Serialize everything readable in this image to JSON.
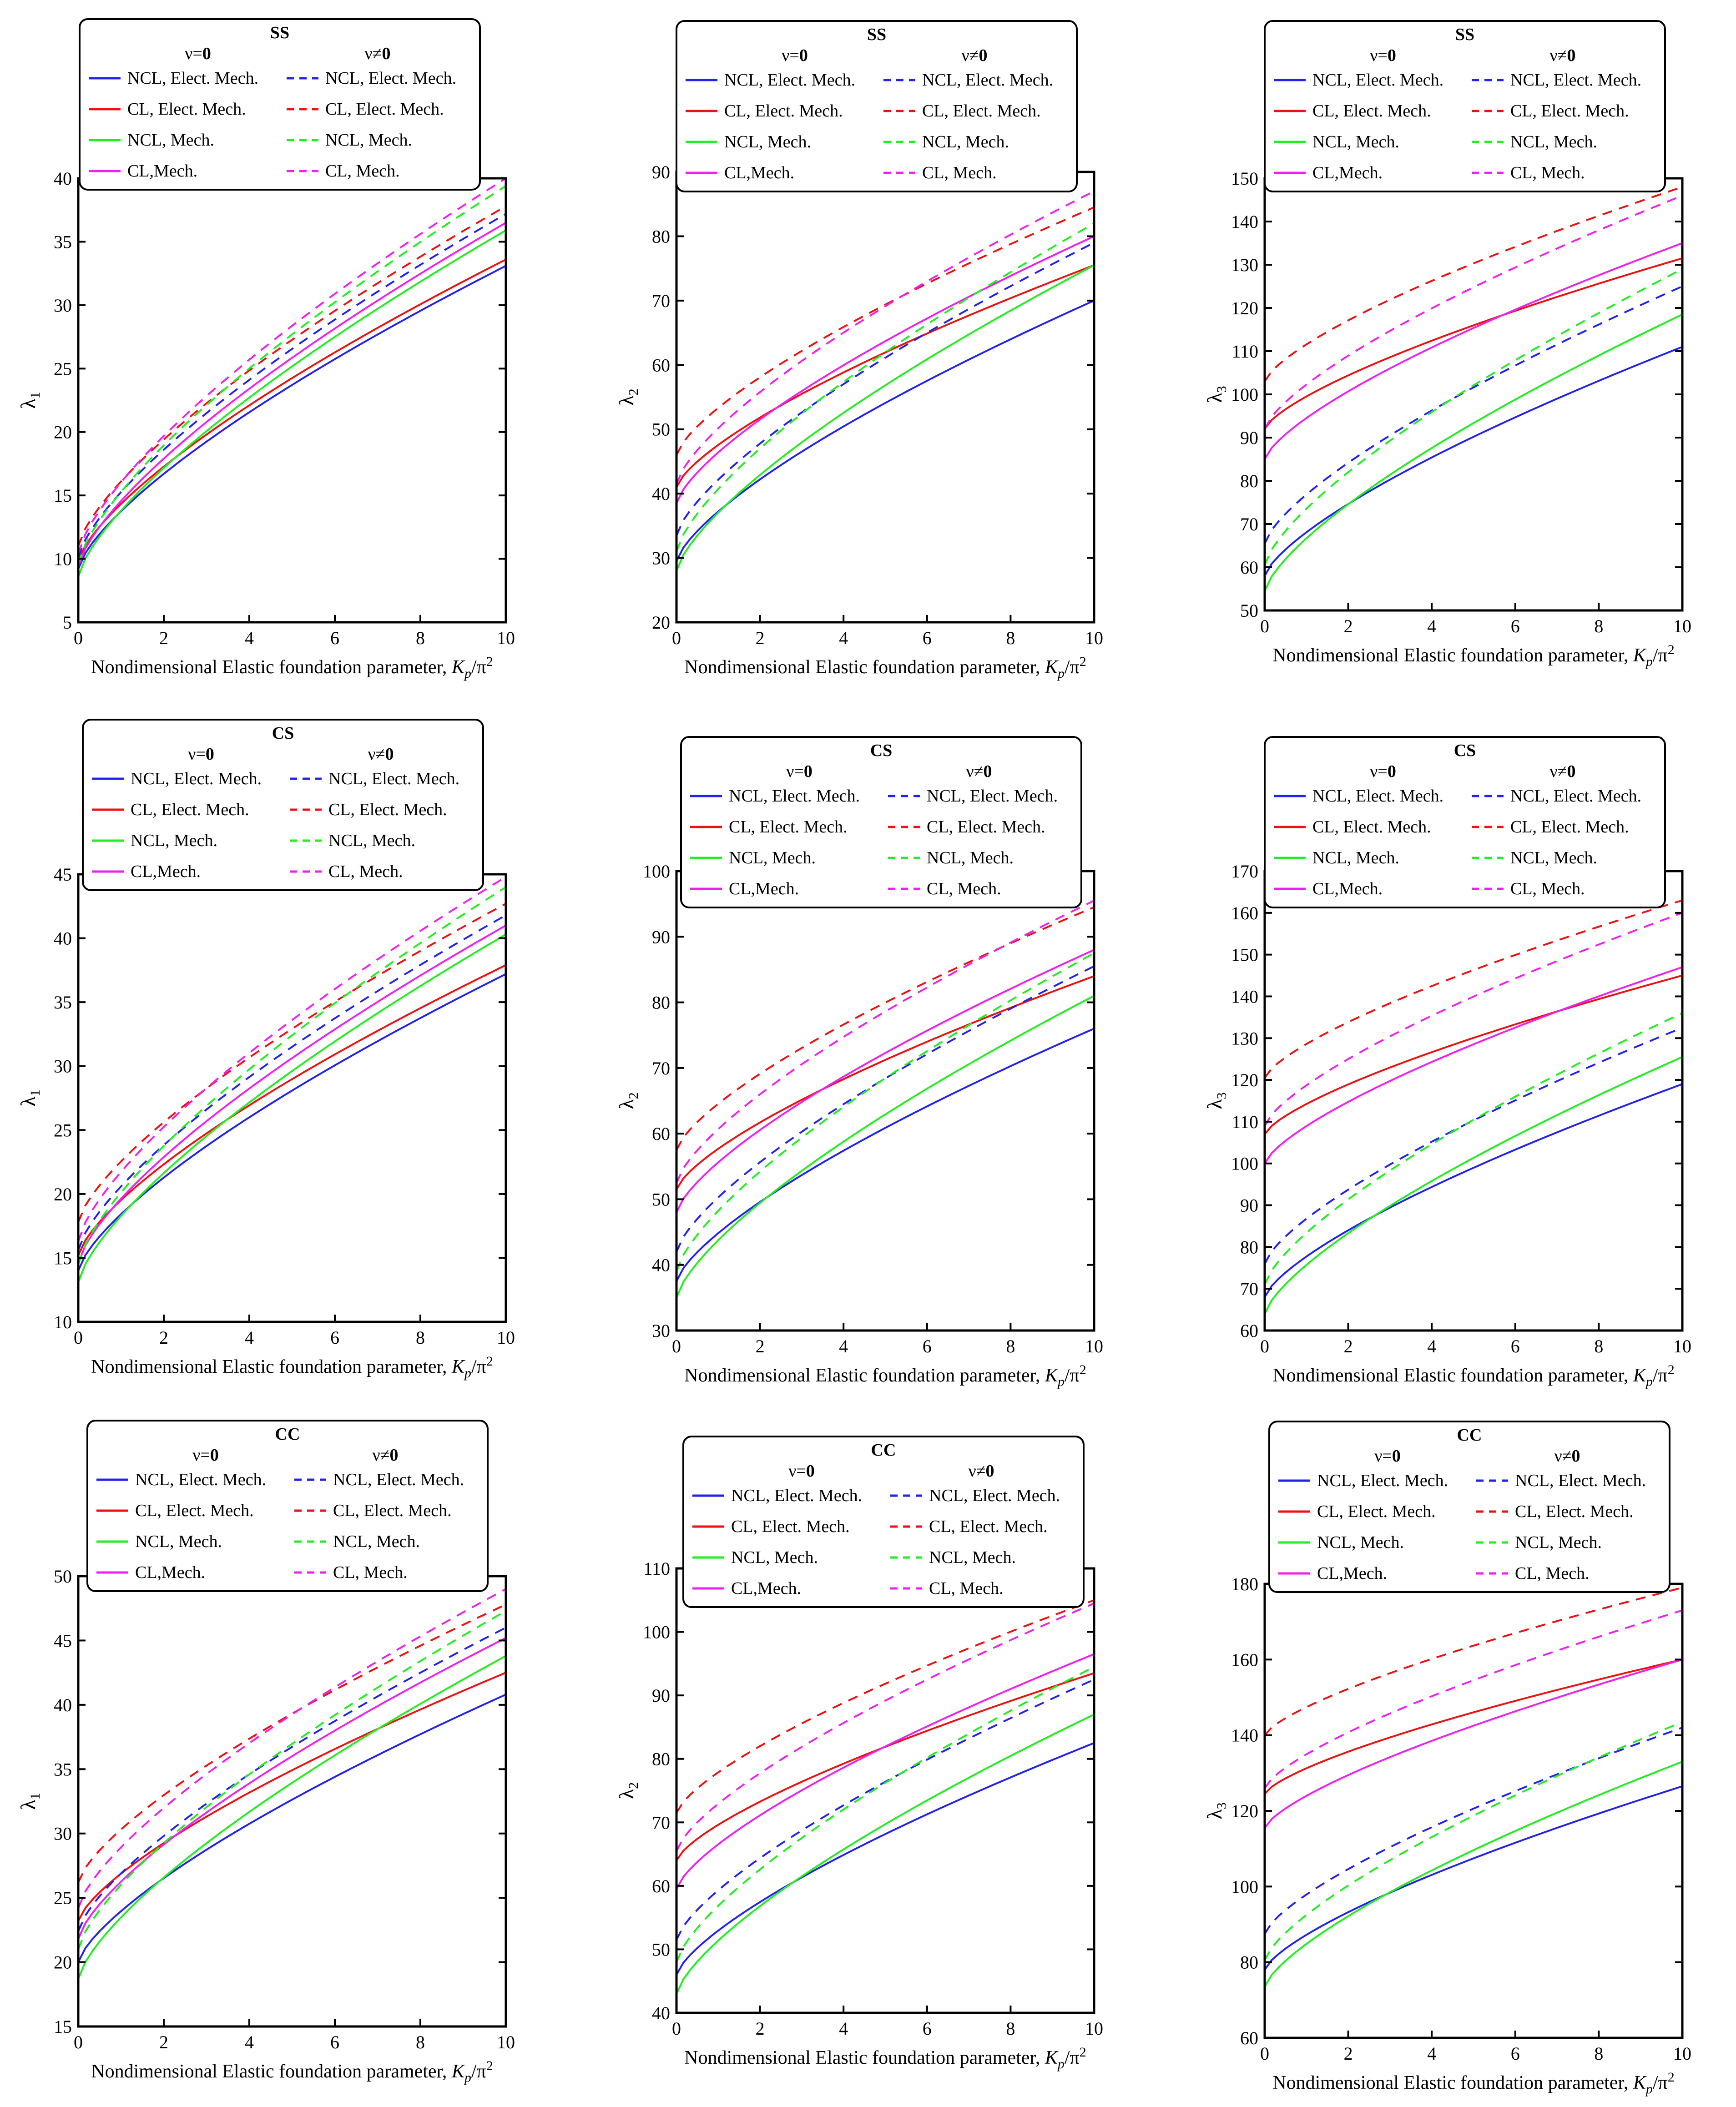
{
  "figure": {
    "colors": {
      "blue": "#2222ee",
      "red": "#ee1111",
      "green": "#22ee22",
      "magenta": "#ee22ee"
    },
    "xlabel_text": "Nondimensional Elastic foundation parameter, ",
    "xlabel_var": "K",
    "xlabel_sub": "p",
    "xlabel_tail": "/π",
    "xlabel_sup": "2",
    "legend": {
      "col1_head": "ν=",
      "col1_head_bold": "0",
      "col2_head": "ν≠",
      "col2_head_bold": "0",
      "col1_labels": [
        "NCL, Elect. Mech.",
        "CL, Elect. Mech.",
        "NCL, Mech.",
        "CL,Mech."
      ],
      "col2_labels": [
        "NCL, Elect. Mech.",
        "CL, Elect. Mech.",
        "NCL, Mech.",
        "CL,  Mech."
      ]
    }
  },
  "chart_data": [
    {
      "type": "line",
      "title": "SS",
      "ylabel": "λ",
      "ysub": "1",
      "xlim": [
        0,
        10
      ],
      "ylim": [
        5,
        40
      ],
      "ytick_step": 5,
      "series": [
        {
          "name": "NCL, Elect. Mech., ν=0",
          "color": "blue",
          "dash": false,
          "start": 9.2,
          "end": 33.1
        },
        {
          "name": "CL, Elect. Mech., ν=0",
          "color": "red",
          "dash": false,
          "start": 9.8,
          "end": 33.6
        },
        {
          "name": "NCL, Mech., ν=0",
          "color": "green",
          "dash": false,
          "start": 8.6,
          "end": 35.9
        },
        {
          "name": "CL,Mech., ν=0",
          "color": "magenta",
          "dash": false,
          "start": 9.4,
          "end": 36.5
        },
        {
          "name": "NCL, Elect. Mech., ν≠0",
          "color": "blue",
          "dash": true,
          "start": 10.1,
          "end": 37.2
        },
        {
          "name": "CL, Elect. Mech., ν≠0",
          "color": "red",
          "dash": true,
          "start": 11.0,
          "end": 37.8
        },
        {
          "name": "NCL, Mech., ν≠0",
          "color": "green",
          "dash": true,
          "start": 9.6,
          "end": 39.4
        },
        {
          "name": "CL,  Mech., ν≠0",
          "color": "magenta",
          "dash": true,
          "start": 10.4,
          "end": 40.0
        }
      ]
    },
    {
      "type": "line",
      "title": "SS",
      "ylabel": "λ",
      "ysub": "2",
      "xlim": [
        0,
        10
      ],
      "ylim": [
        20,
        90
      ],
      "ytick_step": 10,
      "series": [
        {
          "name": "NCL, Elect. Mech., ν=0",
          "color": "blue",
          "dash": false,
          "start": 29.5,
          "end": 70.0
        },
        {
          "name": "CL, Elect. Mech., ν=0",
          "color": "red",
          "dash": false,
          "start": 41.0,
          "end": 75.5
        },
        {
          "name": "NCL, Mech., ν=0",
          "color": "green",
          "dash": false,
          "start": 28.0,
          "end": 75.5
        },
        {
          "name": "CL,Mech., ν=0",
          "color": "magenta",
          "dash": false,
          "start": 38.5,
          "end": 80.0
        },
        {
          "name": "NCL, Elect. Mech., ν≠0",
          "color": "blue",
          "dash": true,
          "start": 33.5,
          "end": 79.0
        },
        {
          "name": "CL, Elect. Mech., ν≠0",
          "color": "red",
          "dash": true,
          "start": 46.0,
          "end": 84.5
        },
        {
          "name": "NCL, Mech., ν≠0",
          "color": "green",
          "dash": true,
          "start": 31.0,
          "end": 82.0
        },
        {
          "name": "CL,  Mech., ν≠0",
          "color": "magenta",
          "dash": true,
          "start": 41.5,
          "end": 87.0
        }
      ]
    },
    {
      "type": "line",
      "title": "SS",
      "ylabel": "λ",
      "ysub": "3",
      "xlim": [
        0,
        10
      ],
      "ylim": [
        50,
        150
      ],
      "ytick_step": 10,
      "series": [
        {
          "name": "NCL, Elect. Mech., ν=0",
          "color": "blue",
          "dash": false,
          "start": 58.0,
          "end": 111.0
        },
        {
          "name": "CL, Elect. Mech., ν=0",
          "color": "red",
          "dash": false,
          "start": 92.0,
          "end": 131.5
        },
        {
          "name": "NCL, Mech., ν=0",
          "color": "green",
          "dash": false,
          "start": 54.5,
          "end": 118.5
        },
        {
          "name": "CL,Mech., ν=0",
          "color": "magenta",
          "dash": false,
          "start": 85.0,
          "end": 135.0
        },
        {
          "name": "NCL, Elect. Mech., ν≠0",
          "color": "blue",
          "dash": true,
          "start": 65.5,
          "end": 125.0
        },
        {
          "name": "CL, Elect. Mech., ν≠0",
          "color": "red",
          "dash": true,
          "start": 103.0,
          "end": 148.0
        },
        {
          "name": "NCL, Mech., ν≠0",
          "color": "green",
          "dash": true,
          "start": 60.5,
          "end": 129.0
        },
        {
          "name": "CL,  Mech., ν≠0",
          "color": "magenta",
          "dash": true,
          "start": 92.0,
          "end": 146.0
        }
      ]
    },
    {
      "type": "line",
      "title": "CS",
      "ylabel": "λ",
      "ysub": "1",
      "xlim": [
        0,
        10
      ],
      "ylim": [
        10,
        45
      ],
      "ytick_step": 5,
      "series": [
        {
          "name": "NCL, Elect. Mech., ν=0",
          "color": "blue",
          "dash": false,
          "start": 14.0,
          "end": 37.2
        },
        {
          "name": "CL, Elect. Mech., ν=0",
          "color": "red",
          "dash": false,
          "start": 15.2,
          "end": 37.9
        },
        {
          "name": "NCL, Mech., ν=0",
          "color": "green",
          "dash": false,
          "start": 13.1,
          "end": 40.3
        },
        {
          "name": "CL,Mech., ν=0",
          "color": "magenta",
          "dash": false,
          "start": 14.6,
          "end": 41.0
        },
        {
          "name": "NCL, Elect. Mech., ν≠0",
          "color": "blue",
          "dash": true,
          "start": 15.6,
          "end": 41.8
        },
        {
          "name": "CL, Elect. Mech., ν≠0",
          "color": "red",
          "dash": true,
          "start": 17.8,
          "end": 42.7
        },
        {
          "name": "NCL, Mech., ν≠0",
          "color": "green",
          "dash": true,
          "start": 14.5,
          "end": 44.0
        },
        {
          "name": "CL,  Mech., ν≠0",
          "color": "magenta",
          "dash": true,
          "start": 16.3,
          "end": 44.8
        }
      ]
    },
    {
      "type": "line",
      "title": "CS",
      "ylabel": "λ",
      "ysub": "2",
      "xlim": [
        0,
        10
      ],
      "ylim": [
        30,
        100
      ],
      "ytick_step": 10,
      "series": [
        {
          "name": "NCL, Elect. Mech., ν=0",
          "color": "blue",
          "dash": false,
          "start": 37.5,
          "end": 76.0
        },
        {
          "name": "CL, Elect. Mech., ν=0",
          "color": "red",
          "dash": false,
          "start": 51.5,
          "end": 84.0
        },
        {
          "name": "NCL, Mech., ν=0",
          "color": "green",
          "dash": false,
          "start": 35.0,
          "end": 81.0
        },
        {
          "name": "CL,Mech., ν=0",
          "color": "magenta",
          "dash": false,
          "start": 48.0,
          "end": 88.0
        },
        {
          "name": "NCL, Elect. Mech., ν≠0",
          "color": "blue",
          "dash": true,
          "start": 42.0,
          "end": 85.5
        },
        {
          "name": "CL, Elect. Mech., ν≠0",
          "color": "red",
          "dash": true,
          "start": 57.5,
          "end": 94.5
        },
        {
          "name": "NCL, Mech., ν≠0",
          "color": "green",
          "dash": true,
          "start": 39.0,
          "end": 87.5
        },
        {
          "name": "CL,  Mech., ν≠0",
          "color": "magenta",
          "dash": true,
          "start": 52.5,
          "end": 95.5
        }
      ]
    },
    {
      "type": "line",
      "title": "CS",
      "ylabel": "λ",
      "ysub": "3",
      "xlim": [
        0,
        10
      ],
      "ylim": [
        60,
        170
      ],
      "ytick_step": 10,
      "series": [
        {
          "name": "NCL, Elect. Mech., ν=0",
          "color": "blue",
          "dash": false,
          "start": 68.0,
          "end": 119.0
        },
        {
          "name": "CL, Elect. Mech., ν=0",
          "color": "red",
          "dash": false,
          "start": 107.0,
          "end": 145.0
        },
        {
          "name": "NCL, Mech., ν=0",
          "color": "green",
          "dash": false,
          "start": 64.0,
          "end": 125.5
        },
        {
          "name": "CL,Mech., ν=0",
          "color": "magenta",
          "dash": false,
          "start": 100.0,
          "end": 147.0
        },
        {
          "name": "NCL, Elect. Mech., ν≠0",
          "color": "blue",
          "dash": true,
          "start": 76.0,
          "end": 132.5
        },
        {
          "name": "CL, Elect. Mech., ν≠0",
          "color": "red",
          "dash": true,
          "start": 120.5,
          "end": 163.0
        },
        {
          "name": "NCL, Mech., ν≠0",
          "color": "green",
          "dash": true,
          "start": 71.0,
          "end": 136.0
        },
        {
          "name": "CL,  Mech., ν≠0",
          "color": "magenta",
          "dash": true,
          "start": 109.0,
          "end": 160.0
        }
      ]
    },
    {
      "type": "line",
      "title": "CC",
      "ylabel": "λ",
      "ysub": "1",
      "xlim": [
        0,
        10
      ],
      "ylim": [
        15,
        50
      ],
      "ytick_step": 5,
      "series": [
        {
          "name": "NCL, Elect. Mech., ν=0",
          "color": "blue",
          "dash": false,
          "start": 20.0,
          "end": 40.8
        },
        {
          "name": "CL, Elect. Mech., ν=0",
          "color": "red",
          "dash": false,
          "start": 23.2,
          "end": 42.5
        },
        {
          "name": "NCL, Mech., ν=0",
          "color": "green",
          "dash": false,
          "start": 18.7,
          "end": 43.8
        },
        {
          "name": "CL,Mech., ν=0",
          "color": "magenta",
          "dash": false,
          "start": 21.8,
          "end": 45.2
        },
        {
          "name": "NCL, Elect. Mech., ν≠0",
          "color": "blue",
          "dash": true,
          "start": 22.4,
          "end": 46.0
        },
        {
          "name": "CL, Elect. Mech., ν≠0",
          "color": "red",
          "dash": true,
          "start": 26.2,
          "end": 47.8
        },
        {
          "name": "NCL, Mech., ν≠0",
          "color": "green",
          "dash": true,
          "start": 21.0,
          "end": 47.3
        },
        {
          "name": "CL,  Mech., ν≠0",
          "color": "magenta",
          "dash": true,
          "start": 24.2,
          "end": 49.0
        }
      ]
    },
    {
      "type": "line",
      "title": "CC",
      "ylabel": "λ",
      "ysub": "2",
      "xlim": [
        0,
        10
      ],
      "ylim": [
        40,
        110
      ],
      "ytick_step": 10,
      "series": [
        {
          "name": "NCL, Elect. Mech., ν=0",
          "color": "blue",
          "dash": false,
          "start": 46.0,
          "end": 82.5
        },
        {
          "name": "CL, Elect. Mech., ν=0",
          "color": "red",
          "dash": false,
          "start": 64.0,
          "end": 93.5
        },
        {
          "name": "NCL, Mech., ν=0",
          "color": "green",
          "dash": false,
          "start": 43.0,
          "end": 87.0
        },
        {
          "name": "CL,Mech., ν=0",
          "color": "magenta",
          "dash": false,
          "start": 59.5,
          "end": 96.5
        },
        {
          "name": "NCL, Elect. Mech., ν≠0",
          "color": "blue",
          "dash": true,
          "start": 51.5,
          "end": 92.5
        },
        {
          "name": "CL, Elect. Mech., ν≠0",
          "color": "red",
          "dash": true,
          "start": 71.5,
          "end": 105.0
        },
        {
          "name": "NCL, Mech., ν≠0",
          "color": "green",
          "dash": true,
          "start": 48.0,
          "end": 94.5
        },
        {
          "name": "CL,  Mech., ν≠0",
          "color": "magenta",
          "dash": true,
          "start": 65.5,
          "end": 104.5
        }
      ]
    },
    {
      "type": "line",
      "title": "CC",
      "ylabel": "λ",
      "ysub": "3",
      "xlim": [
        0,
        10
      ],
      "ylim": [
        60,
        180
      ],
      "ytick_step": 20,
      "series": [
        {
          "name": "NCL, Elect. Mech., ν=0",
          "color": "blue",
          "dash": false,
          "start": 78.0,
          "end": 126.5
        },
        {
          "name": "CL, Elect. Mech., ν=0",
          "color": "red",
          "dash": false,
          "start": 124.5,
          "end": 160.0
        },
        {
          "name": "NCL, Mech., ν=0",
          "color": "green",
          "dash": false,
          "start": 73.5,
          "end": 133.0
        },
        {
          "name": "CL,Mech., ν=0",
          "color": "magenta",
          "dash": false,
          "start": 115.5,
          "end": 160.0
        },
        {
          "name": "NCL, Elect. Mech., ν≠0",
          "color": "blue",
          "dash": true,
          "start": 87.5,
          "end": 142.0
        },
        {
          "name": "CL, Elect. Mech., ν≠0",
          "color": "red",
          "dash": true,
          "start": 140.0,
          "end": 179.0
        },
        {
          "name": "NCL, Mech., ν≠0",
          "color": "green",
          "dash": true,
          "start": 80.5,
          "end": 143.5
        },
        {
          "name": "CL,  Mech., ν≠0",
          "color": "magenta",
          "dash": true,
          "start": 126.0,
          "end": 173.0
        }
      ]
    }
  ]
}
